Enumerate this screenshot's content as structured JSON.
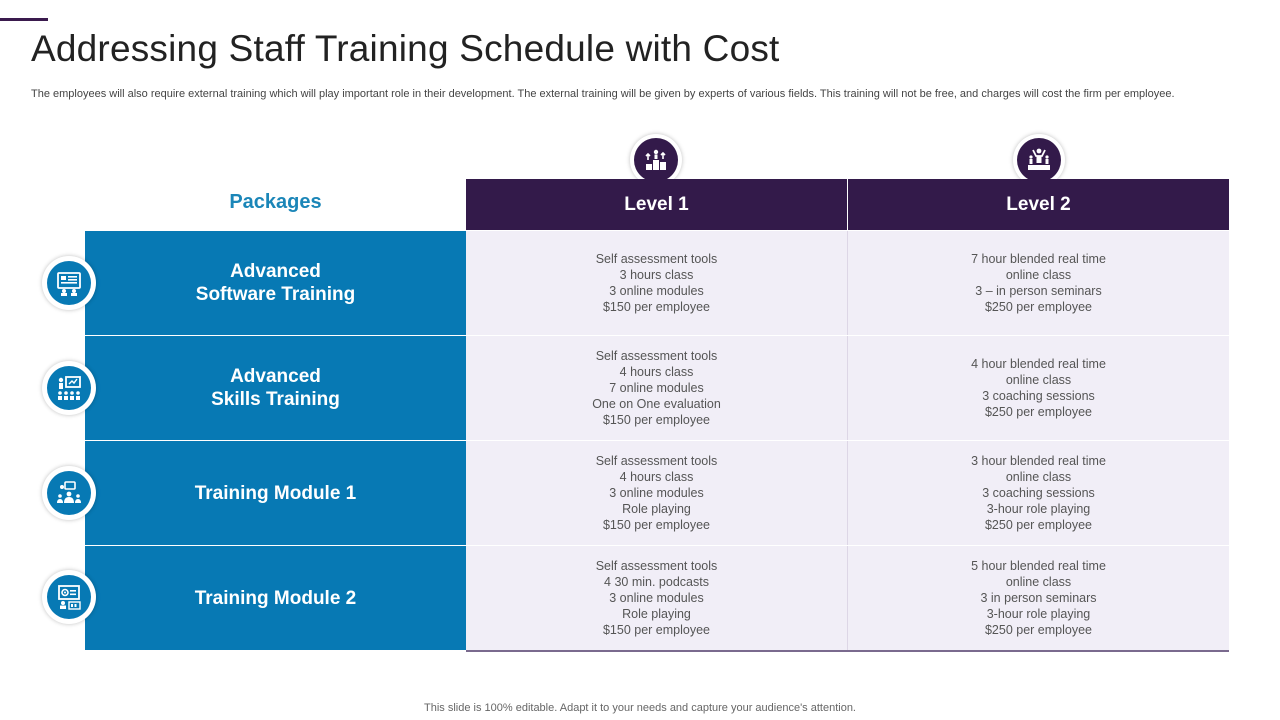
{
  "slide": {
    "title": "Addressing Staff Training Schedule with Cost",
    "subtitle": "The employees will also require external training which will play important role in their development. The external training will be given by experts of various fields. This training will not be free, and charges will cost the firm per employee.",
    "footer": "This slide is 100% editable. Adapt it to your needs and capture your audience's attention."
  },
  "table": {
    "packages_header": "Packages",
    "columns": [
      {
        "label": "Level 1",
        "icon": "podium-growth-icon"
      },
      {
        "label": "Level 2",
        "icon": "winner-podium-icon"
      }
    ],
    "rows": [
      {
        "package": [
          "Advanced",
          "Software Training"
        ],
        "icon": "software-training-icon",
        "level1": [
          "Self assessment tools",
          "3 hours class",
          "3 online modules",
          "$150 per employee"
        ],
        "level2": [
          "7 hour blended real time",
          "online class",
          "3 – in person seminars",
          "$250 per employee"
        ]
      },
      {
        "package": [
          "Advanced",
          "Skills Training"
        ],
        "icon": "skills-presentation-icon",
        "level1": [
          "Self assessment tools",
          "4 hours class",
          "7 online modules",
          "One on One evaluation",
          "$150 per employee"
        ],
        "level2": [
          "4 hour blended real time",
          "online class",
          "3 coaching sessions",
          "$250 per employee"
        ]
      },
      {
        "package": [
          "Training Module 1"
        ],
        "icon": "team-training-icon",
        "level1": [
          "Self assessment tools",
          "4 hours class",
          "3 online modules",
          "Role playing",
          "$150 per employee"
        ],
        "level2": [
          "3 hour blended real time",
          "online class",
          "3 coaching sessions",
          "3-hour role playing",
          "$250 per employee"
        ]
      },
      {
        "package": [
          "Training Module 2"
        ],
        "icon": "module-settings-icon",
        "level1": [
          "Self assessment tools",
          "4 30 min. podcasts",
          "3 online modules",
          "Role playing",
          "$150 per employee"
        ],
        "level2": [
          "5 hour blended real time",
          "online class",
          "3 in person seminars",
          "3-hour role playing",
          "$250 per employee"
        ]
      }
    ]
  },
  "colors": {
    "header_purple": "#331a4a",
    "package_blue": "#0779b4",
    "packages_label_blue": "#1b86b8",
    "cell_bg": "#f1eef7"
  }
}
